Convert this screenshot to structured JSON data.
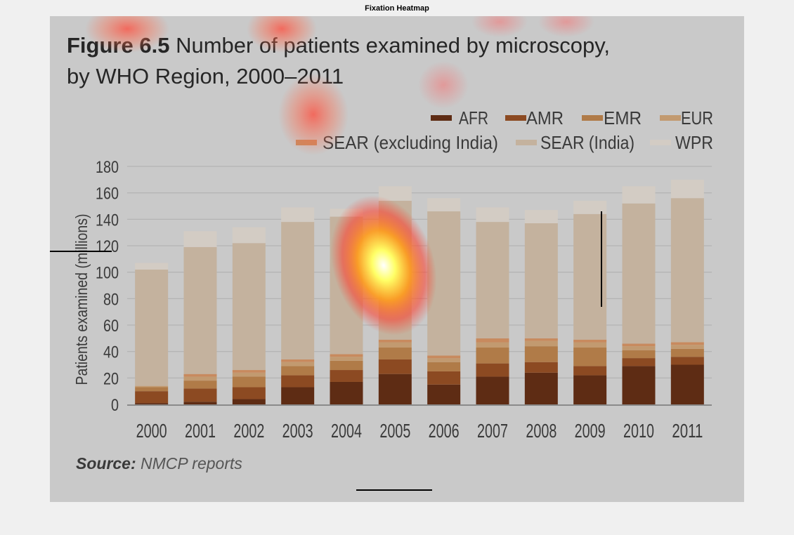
{
  "window": {
    "title": "Fixation Heatmap"
  },
  "figure": {
    "title_prefix": "Figure 6.5",
    "title_rest": "Number of patients examined by microscopy,",
    "title_line2": "by WHO Region, 2000–2011",
    "source_label": "Source:",
    "source_text": "NMCP reports"
  },
  "chart_data": {
    "type": "bar",
    "stacked": true,
    "categories": [
      "2000",
      "2001",
      "2002",
      "2003",
      "2004",
      "2005",
      "2006",
      "2007",
      "2008",
      "2009",
      "2010",
      "2011"
    ],
    "ylabel": "Patients examined (millions)",
    "xlabel": "",
    "ylim": [
      0,
      180
    ],
    "yticks": [
      0,
      20,
      40,
      60,
      80,
      100,
      120,
      140,
      160,
      180
    ],
    "grid": true,
    "legend_position": "top-right",
    "series": [
      {
        "name": "AFR",
        "color": "#5e2c14",
        "values": [
          1,
          2,
          4,
          13,
          17,
          23,
          15,
          21,
          24,
          22,
          29,
          30
        ]
      },
      {
        "name": "AMR",
        "color": "#8c4a22",
        "values": [
          9,
          10,
          9,
          9,
          9,
          11,
          10,
          10,
          8,
          7,
          6,
          6
        ]
      },
      {
        "name": "EMR",
        "color": "#b07b48",
        "values": [
          3,
          6,
          8,
          7,
          7,
          9,
          7,
          12,
          12,
          14,
          6,
          6
        ]
      },
      {
        "name": "EUR",
        "color": "#c29a70",
        "values": [
          1,
          3,
          3,
          3,
          3,
          4,
          3,
          4,
          4,
          4,
          3,
          3
        ]
      },
      {
        "name": "SEAR (excluding India)",
        "color": "#c88a5e",
        "values": [
          0,
          2,
          2,
          2,
          2,
          2,
          2,
          3,
          2,
          2,
          2,
          2
        ]
      },
      {
        "name": "SEAR (India)",
        "color": "#c4b29e",
        "values": [
          88,
          96,
          96,
          104,
          104,
          105,
          109,
          88,
          87,
          95,
          106,
          109
        ]
      },
      {
        "name": "WPR",
        "color": "#d3ccc4",
        "values": [
          5,
          12,
          12,
          11,
          6,
          11,
          10,
          11,
          10,
          10,
          13,
          14
        ]
      }
    ]
  }
}
